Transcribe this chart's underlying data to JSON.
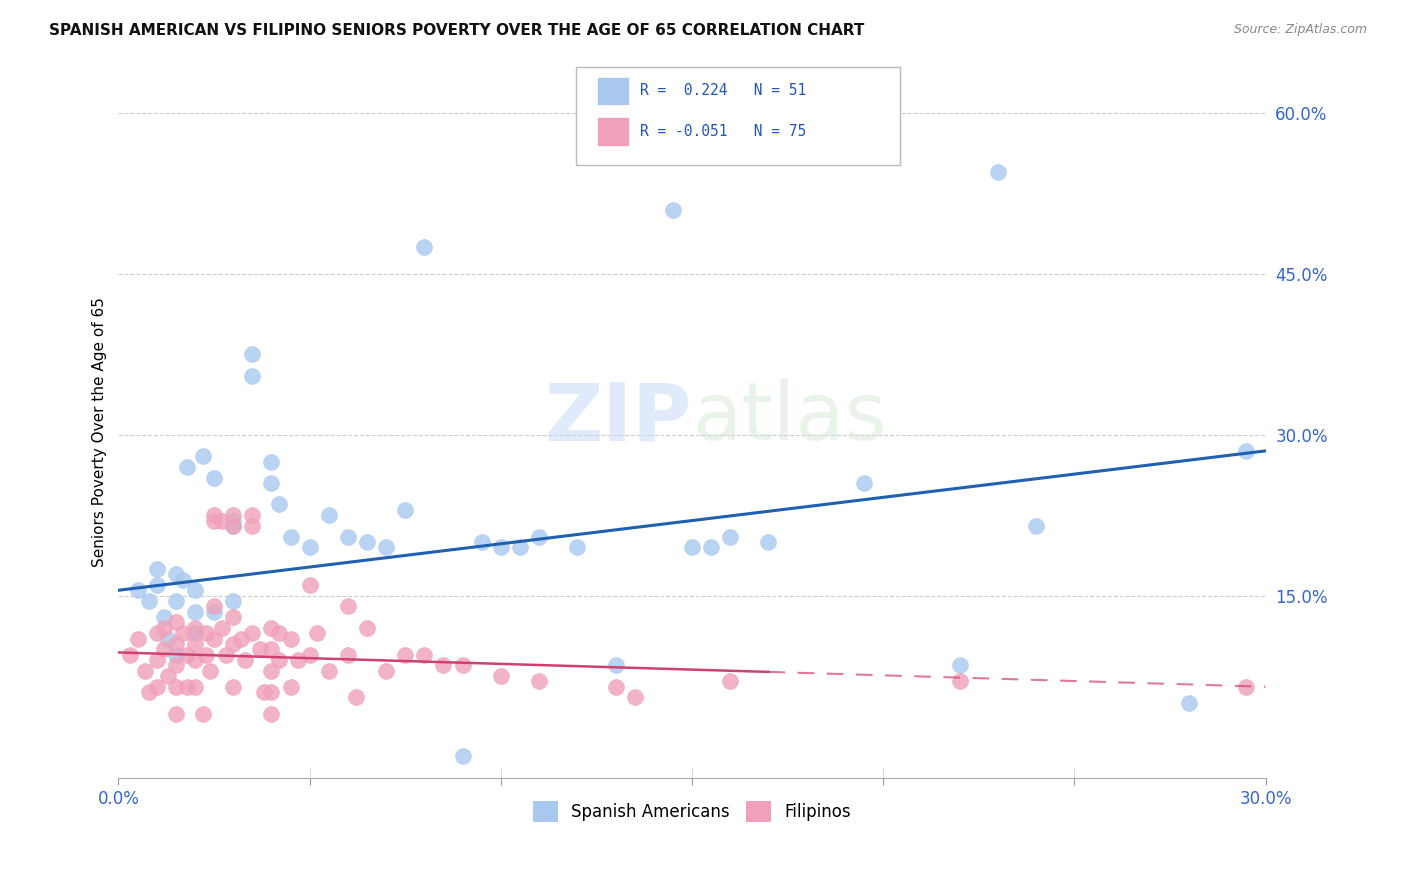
{
  "title": "SPANISH AMERICAN VS FILIPINO SENIORS POVERTY OVER THE AGE OF 65 CORRELATION CHART",
  "source": "Source: ZipAtlas.com",
  "ylabel": "Seniors Poverty Over the Age of 65",
  "xlim": [
    0.0,
    0.3
  ],
  "ylim": [
    -0.02,
    0.625
  ],
  "yticks": [
    0.0,
    0.15,
    0.3,
    0.45,
    0.6
  ],
  "ytick_labels": [
    "",
    "15.0%",
    "30.0%",
    "45.0%",
    "60.0%"
  ],
  "xticks": [
    0.0,
    0.05,
    0.1,
    0.15,
    0.2,
    0.25,
    0.3
  ],
  "xtick_labels": [
    "0.0%",
    "",
    "",
    "",
    "",
    "",
    "30.0%"
  ],
  "legend_label1": "Spanish Americans",
  "legend_label2": "Filipinos",
  "blue_color": "#a8c8f0",
  "pink_color": "#f0a0b8",
  "blue_line_color": "#2060b0",
  "pink_line_color": "#d04070",
  "watermark_zip": "ZIP",
  "watermark_atlas": "atlas",
  "blue_x": [
    0.005,
    0.008,
    0.01,
    0.01,
    0.012,
    0.013,
    0.015,
    0.015,
    0.015,
    0.017,
    0.018,
    0.02,
    0.02,
    0.02,
    0.022,
    0.025,
    0.025,
    0.03,
    0.03,
    0.03,
    0.035,
    0.035,
    0.04,
    0.04,
    0.042,
    0.045,
    0.05,
    0.055,
    0.06,
    0.065,
    0.07,
    0.075,
    0.08,
    0.09,
    0.095,
    0.1,
    0.105,
    0.11,
    0.12,
    0.13,
    0.145,
    0.15,
    0.155,
    0.16,
    0.17,
    0.195,
    0.22,
    0.23,
    0.24,
    0.28,
    0.295
  ],
  "blue_y": [
    0.155,
    0.145,
    0.175,
    0.16,
    0.13,
    0.11,
    0.095,
    0.17,
    0.145,
    0.165,
    0.27,
    0.155,
    0.135,
    0.115,
    0.28,
    0.26,
    0.135,
    0.22,
    0.215,
    0.145,
    0.375,
    0.355,
    0.275,
    0.255,
    0.235,
    0.205,
    0.195,
    0.225,
    0.205,
    0.2,
    0.195,
    0.23,
    0.475,
    0.0,
    0.2,
    0.195,
    0.195,
    0.205,
    0.195,
    0.085,
    0.51,
    0.195,
    0.195,
    0.205,
    0.2,
    0.255,
    0.085,
    0.545,
    0.215,
    0.05,
    0.285
  ],
  "pink_x": [
    0.003,
    0.005,
    0.007,
    0.008,
    0.01,
    0.01,
    0.01,
    0.012,
    0.012,
    0.013,
    0.015,
    0.015,
    0.015,
    0.015,
    0.015,
    0.017,
    0.018,
    0.018,
    0.02,
    0.02,
    0.02,
    0.02,
    0.022,
    0.023,
    0.023,
    0.024,
    0.025,
    0.025,
    0.025,
    0.025,
    0.027,
    0.027,
    0.028,
    0.03,
    0.03,
    0.03,
    0.03,
    0.03,
    0.032,
    0.033,
    0.035,
    0.035,
    0.035,
    0.037,
    0.038,
    0.04,
    0.04,
    0.04,
    0.04,
    0.04,
    0.042,
    0.042,
    0.045,
    0.045,
    0.047,
    0.05,
    0.05,
    0.052,
    0.055,
    0.06,
    0.06,
    0.062,
    0.065,
    0.07,
    0.075,
    0.08,
    0.085,
    0.09,
    0.1,
    0.11,
    0.13,
    0.135,
    0.16,
    0.22,
    0.295
  ],
  "pink_y": [
    0.095,
    0.11,
    0.08,
    0.06,
    0.115,
    0.09,
    0.065,
    0.12,
    0.1,
    0.075,
    0.125,
    0.105,
    0.085,
    0.065,
    0.04,
    0.115,
    0.095,
    0.065,
    0.12,
    0.105,
    0.09,
    0.065,
    0.04,
    0.115,
    0.095,
    0.08,
    0.225,
    0.22,
    0.14,
    0.11,
    0.22,
    0.12,
    0.095,
    0.225,
    0.215,
    0.13,
    0.105,
    0.065,
    0.11,
    0.09,
    0.225,
    0.215,
    0.115,
    0.1,
    0.06,
    0.12,
    0.1,
    0.08,
    0.06,
    0.04,
    0.115,
    0.09,
    0.11,
    0.065,
    0.09,
    0.16,
    0.095,
    0.115,
    0.08,
    0.14,
    0.095,
    0.055,
    0.12,
    0.08,
    0.095,
    0.095,
    0.085,
    0.085,
    0.075,
    0.07,
    0.065,
    0.055,
    0.07,
    0.07,
    0.065
  ]
}
